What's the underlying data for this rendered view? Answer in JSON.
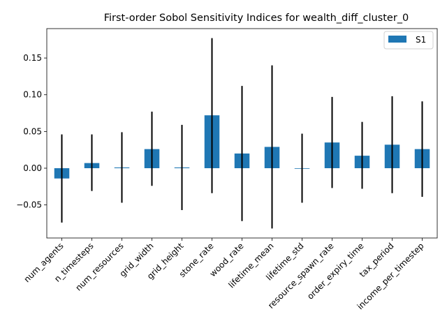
{
  "chart_data": {
    "type": "bar",
    "title": "First-order Sobol Sensitivity Indices for wealth_diff_cluster_0",
    "xlabel": "",
    "ylabel": "",
    "ylim": [
      -0.095,
      0.19
    ],
    "yticks": [
      -0.05,
      0.0,
      0.05,
      0.1,
      0.15
    ],
    "ytick_labels": [
      "−0.05",
      "0.00",
      "0.05",
      "0.10",
      "0.15"
    ],
    "legend_position": "top-right",
    "grid": false,
    "categories": [
      "num_agents",
      "n_timesteps",
      "num_resources",
      "grid_width",
      "grid_height",
      "stone_rate",
      "wood_rate",
      "lifetime_mean",
      "lifetime_std",
      "resource_spawn_rate",
      "order_expiry_time",
      "tax_period",
      "income_per_timestep"
    ],
    "series": [
      {
        "name": "S1",
        "color": "#1f77b4",
        "values": [
          -0.014,
          0.007,
          0.001,
          0.026,
          0.001,
          0.072,
          0.02,
          0.029,
          0.0,
          0.035,
          0.017,
          0.032,
          0.026
        ],
        "error_low": [
          -0.074,
          -0.031,
          -0.047,
          -0.024,
          -0.057,
          -0.034,
          -0.072,
          -0.082,
          -0.047,
          -0.027,
          -0.028,
          -0.034,
          -0.039
        ],
        "error_high": [
          0.046,
          0.046,
          0.049,
          0.077,
          0.059,
          0.177,
          0.112,
          0.14,
          0.047,
          0.097,
          0.063,
          0.098,
          0.091
        ]
      }
    ]
  }
}
